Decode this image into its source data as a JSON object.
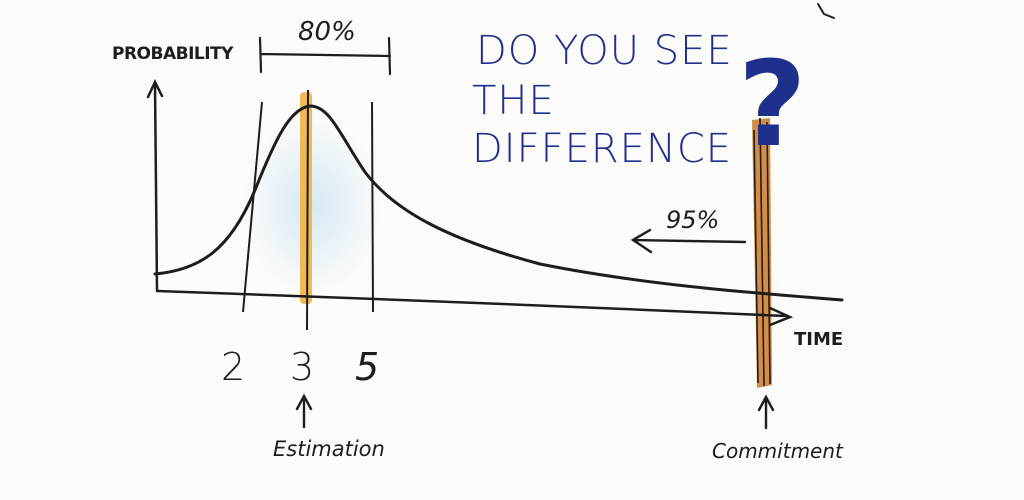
{
  "axis": {
    "y_label": "PROBABILITY",
    "x_label": "TIME"
  },
  "interval": {
    "percent_label": "80%",
    "lower_tick": "2",
    "center_tick": "3",
    "upper_tick": "5"
  },
  "estimation": {
    "label": "Estimation"
  },
  "commitment": {
    "label": "Commitment",
    "percent_label": "95%"
  },
  "question": {
    "line1": "DO YOU SEE",
    "line2": "THE",
    "line3": "DIFFERENCE",
    "mark": "?"
  },
  "colors": {
    "ink": "#1d1d1d",
    "question_blue": "#1f2f8c",
    "estimation_highlight": "#f1b243",
    "commitment_highlight": "#c97a2c",
    "area_tint": "#cfe6f3"
  }
}
